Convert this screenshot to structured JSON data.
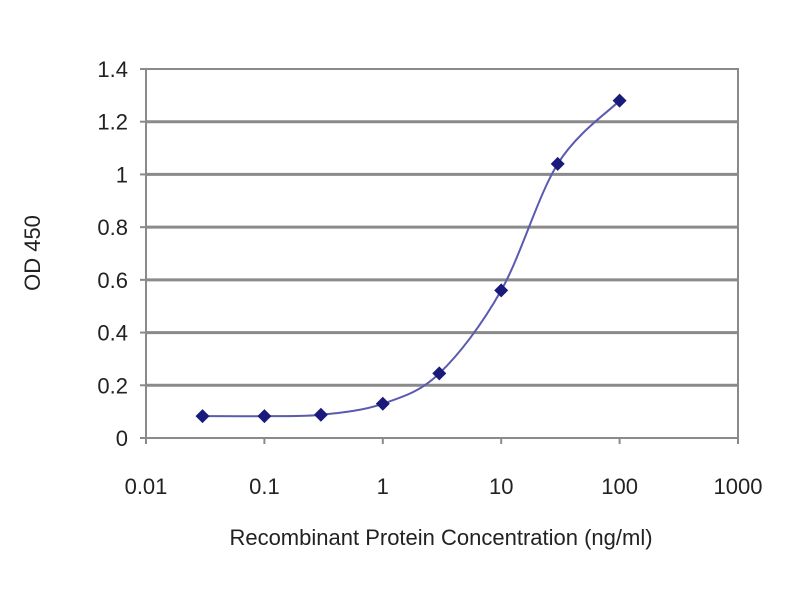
{
  "chart_data": {
    "type": "line",
    "xlabel": "Recombinant Protein Concentration (ng/ml)",
    "ylabel": "OD 450",
    "x_scale": "log",
    "xlim": [
      0.01,
      1000
    ],
    "ylim": [
      0,
      1.4
    ],
    "x_ticks": [
      "0.01",
      "0.1",
      "1",
      "10",
      "100",
      "1000"
    ],
    "y_ticks": [
      "0",
      "0.2",
      "0.4",
      "0.6",
      "0.8",
      "1",
      "1.2",
      "1.4"
    ],
    "grid": "horizontal",
    "series": [
      {
        "x": [
          0.03,
          0.1,
          0.3,
          1,
          3,
          10,
          30,
          100
        ],
        "y": [
          0.083,
          0.083,
          0.088,
          0.13,
          0.245,
          0.56,
          1.04,
          1.28
        ],
        "marker": "diamond",
        "smooth": true
      }
    ],
    "colors": {
      "series": "#1a1a7a",
      "line": "#5a5ab0",
      "grid": "#8a8a8a"
    }
  }
}
